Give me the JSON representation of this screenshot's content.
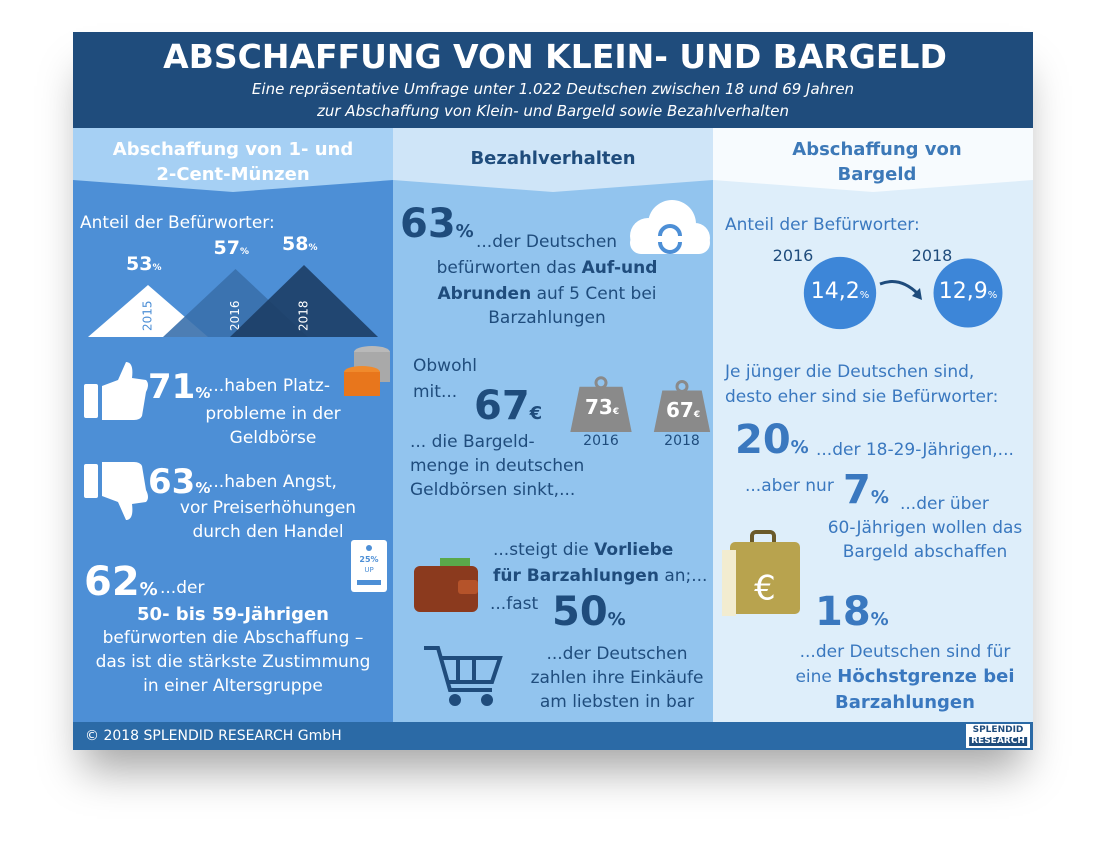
{
  "header": {
    "title": "ABSCHAFFUNG VON KLEIN- UND BARGELD",
    "subtitle": [
      "Eine repräsentative Umfrage unter 1.022 Deutschen zwischen 18 und 69 Jahren",
      "zur Abschaffung von Klein- und Bargeld sowie Bezahlverhalten"
    ]
  },
  "coins": {
    "heading": [
      "Abschaffung von 1- und",
      "2-Cent-Münzen"
    ],
    "intro": "Anteil der Befürworter:",
    "trend": [
      {
        "year": "2015",
        "value": 53,
        "unit": "%"
      },
      {
        "year": "2016",
        "value": 57,
        "unit": "%"
      },
      {
        "year": "2018",
        "value": 58,
        "unit": "%"
      }
    ],
    "facts": [
      {
        "value": 71,
        "unit": "%",
        "lines": [
          "...haben Platz-",
          "probleme in der",
          "Geldbörse"
        ]
      },
      {
        "value": 63,
        "unit": "%",
        "lines": [
          "...haben Angst,",
          "vor Preiserhöhungen",
          "durch den Handel"
        ]
      },
      {
        "value": 62,
        "unit": "%",
        "lines": [
          "...der",
          [
            {
              "t": "50- bis 59-Jährigen",
              "b": true
            }
          ],
          "befürworten die Abschaffung –",
          "das ist die stärkste Zustimmung",
          "in einer Altersgruppe"
        ]
      }
    ],
    "tag": [
      "25%",
      "UP"
    ]
  },
  "payment": {
    "heading": "Bezahlverhalten",
    "rounding": {
      "value": 63,
      "unit": "%",
      "lines": [
        "...der Deutschen",
        [
          {
            "t": "befürworten das "
          },
          {
            "t": "Auf-und",
            "b": true
          }
        ],
        [
          {
            "t": "Abrunden",
            "b": true
          },
          {
            "t": " auf 5 Cent bei"
          }
        ],
        "Barzahlungen"
      ]
    },
    "amount": {
      "lead": [
        "Obwohl",
        "mit..."
      ],
      "value": 67,
      "unit": "€",
      "lines": [
        "... die Bargeld-",
        "menge in deutschen",
        "Geldbörsen sinkt,..."
      ],
      "weights": [
        {
          "value": 73,
          "unit": "€",
          "year": "2016"
        },
        {
          "value": 67,
          "unit": "€",
          "year": "2018"
        }
      ]
    },
    "cash": {
      "lead": [
        [
          {
            "t": "...steigt die "
          },
          {
            "t": "Vorliebe",
            "b": true
          }
        ],
        [
          {
            "t": "für Barzahlungen",
            "b": true
          },
          {
            "t": " an;..."
          }
        ],
        "...fast"
      ],
      "value": 50,
      "unit": "%",
      "lines": [
        "...der Deutschen",
        "zahlen ihre Einkäufe",
        "am liebsten in bar"
      ]
    }
  },
  "cash": {
    "heading": [
      "Abschaffung von",
      "Bargeld"
    ],
    "intro": "Anteil der Befürworter:",
    "trend": [
      {
        "year": "2016",
        "value": 14.2,
        "label": "14,2",
        "unit": "%"
      },
      {
        "year": "2018",
        "value": 12.9,
        "label": "12,9",
        "unit": "%"
      }
    ],
    "age_intro": [
      "Je jünger die Deutschen sind,",
      "desto eher sind sie Befürworter:"
    ],
    "young": {
      "value": 20,
      "unit": "%",
      "lines": [
        "...der 18-29-Jährigen,..."
      ]
    },
    "old": {
      "lead": "...aber nur",
      "value": 7,
      "unit": "%",
      "lines": [
        "...der über",
        "60-Jährigen wollen das",
        "Bargeld abschaffen"
      ]
    },
    "limit": {
      "value": 18,
      "unit": "%",
      "lines": [
        "...der Deutschen sind für",
        [
          {
            "t": "eine "
          },
          {
            "t": "Höchstgrenze bei",
            "b": true
          }
        ],
        [
          {
            "t": "Barzahlungen",
            "b": true
          }
        ]
      ]
    }
  },
  "footer": {
    "copyright": "© 2018 SPLENDID RESEARCH GmbH",
    "logo": [
      "SPLENDID",
      "RESEARCH"
    ]
  }
}
